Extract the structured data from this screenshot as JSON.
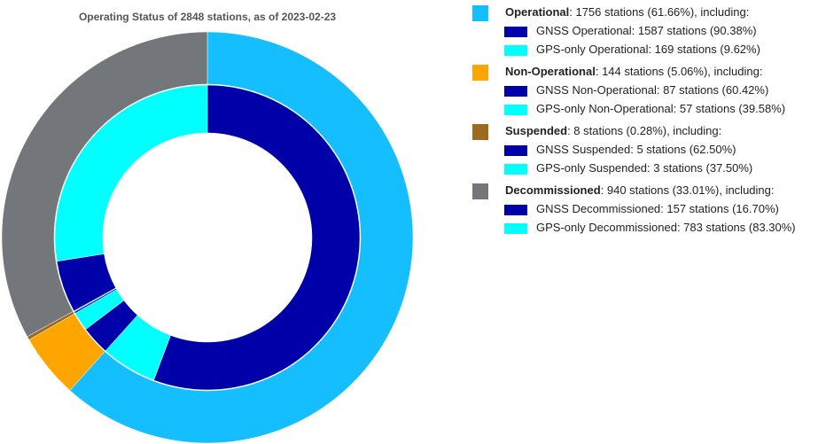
{
  "chart_data": {
    "type": "nested-donut",
    "title": "Operating Status of 2848 stations, as of 2023-02-23",
    "outer": {
      "categories": [
        "Operational",
        "Non-Operational",
        "Suspended",
        "Decommissioned"
      ],
      "values": [
        1756,
        144,
        8,
        940
      ],
      "value_labels": [
        ": 1756 stations (61.66%), including:",
        ": 144 stations (5.06%), including:",
        ": 8 stations (0.28%), including:",
        ": 940 stations (33.01%), including:"
      ],
      "colors": [
        "#15bfff",
        "#ffa500",
        "#9c6b1e",
        "#73767a"
      ]
    },
    "inner": {
      "categories": [
        "GNSS Operational",
        "GPS-only Operational",
        "GNSS Non-Operational",
        "GPS-only Non-Operational",
        "GNSS Suspended",
        "GPS-only Suspended",
        "GNSS Decommissioned",
        "GPS-only Decommissioned"
      ],
      "values": [
        1587,
        169,
        87,
        57,
        5,
        3,
        157,
        783
      ],
      "value_labels": [
        ": 1587 stations (90.38%)",
        ": 169 stations (9.62%)",
        ": 87 stations (60.42%)",
        ": 57 stations (39.58%)",
        ": 5 stations (62.50%)",
        ": 3 stations (37.50%)",
        ": 157 stations (16.70%)",
        ": 783 stations (83.30%)"
      ],
      "colors": [
        "#0000a8",
        "#00ffff",
        "#0000a8",
        "#00ffff",
        "#0000a8",
        "#00ffff",
        "#0000a8",
        "#00ffff"
      ]
    }
  }
}
